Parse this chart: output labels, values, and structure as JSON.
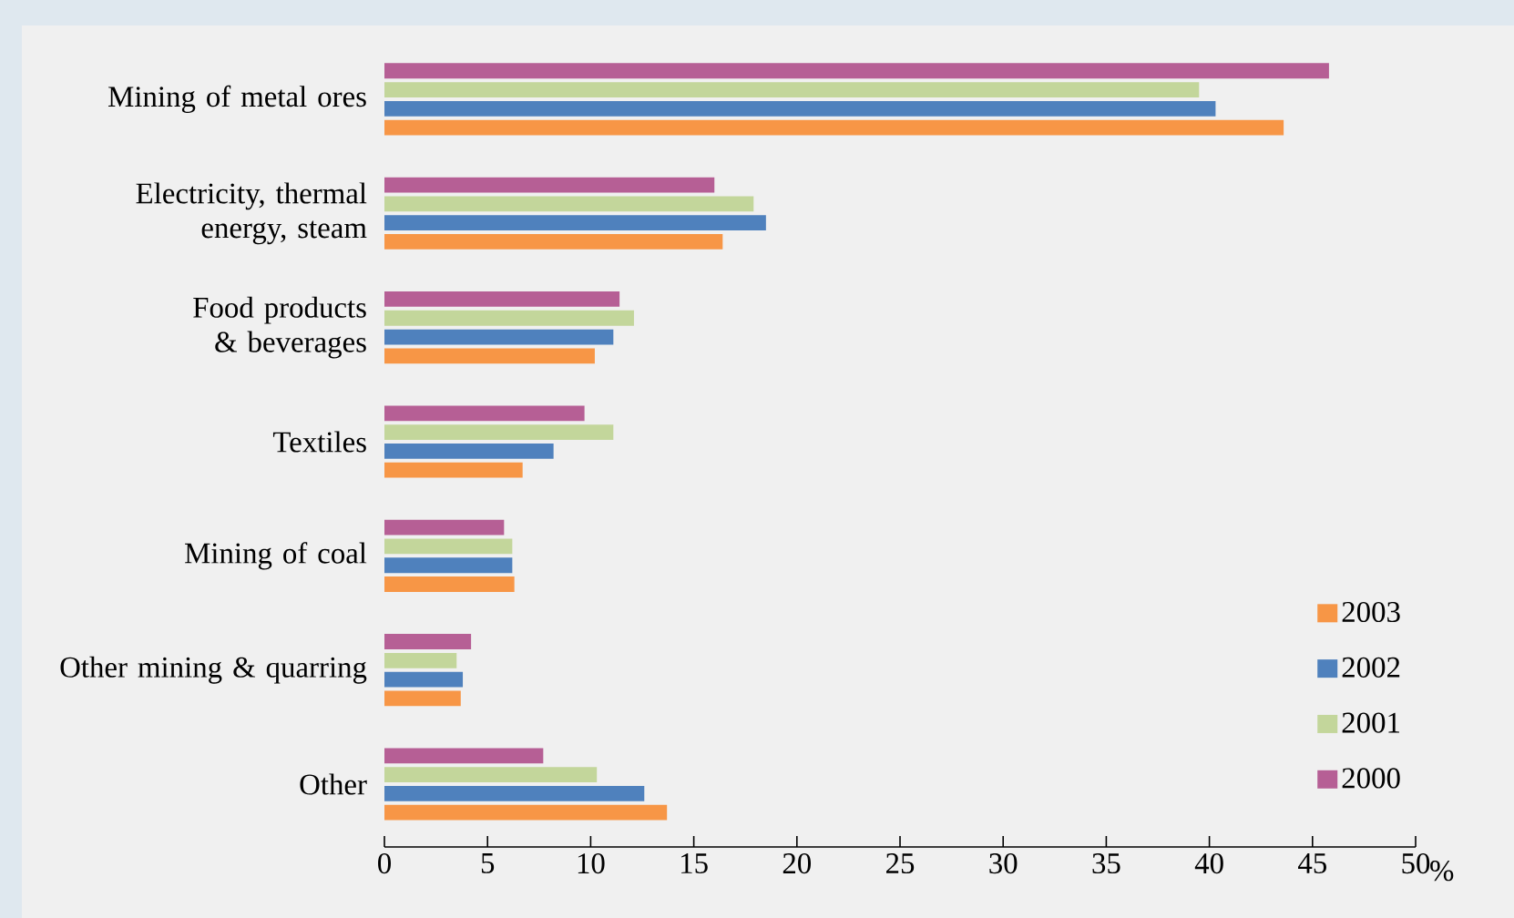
{
  "chart_data": {
    "type": "bar",
    "orientation": "horizontal",
    "xlabel": "%",
    "categories": [
      "Mining of metal ores",
      "Electricity, thermal energy, steam",
      "Food products & beverages",
      "Textiles",
      "Mining of coal",
      "Other mining & quarring",
      "Other"
    ],
    "series": [
      {
        "name": "2003",
        "color": "#f79646",
        "values": [
          43.6,
          16.4,
          10.2,
          6.7,
          6.3,
          3.7,
          13.7
        ]
      },
      {
        "name": "2002",
        "color": "#4f81bd",
        "values": [
          40.3,
          18.5,
          11.1,
          8.2,
          6.2,
          3.8,
          12.6
        ]
      },
      {
        "name": "2001",
        "color": "#c3d69b",
        "values": [
          39.5,
          17.9,
          12.1,
          11.1,
          6.2,
          3.5,
          10.3
        ]
      },
      {
        "name": "2000",
        "color": "#b65f95",
        "values": [
          45.8,
          16.0,
          11.4,
          9.7,
          5.8,
          4.2,
          7.7
        ]
      }
    ],
    "xlim": [
      0,
      50
    ],
    "xticks": [
      0,
      5,
      10,
      15,
      20,
      25,
      30,
      35,
      40,
      45,
      50
    ],
    "grid": false,
    "legend": "bottom right"
  }
}
